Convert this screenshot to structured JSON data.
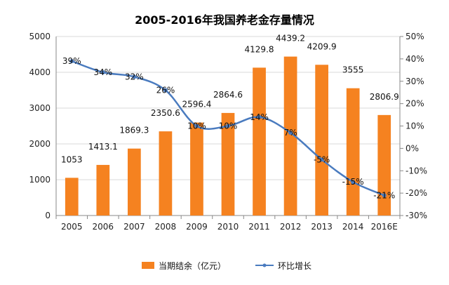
{
  "chart_data": {
    "type": "bar",
    "title": "2005-2016年我国养老金存量情况",
    "categories": [
      "2005",
      "2006",
      "2007",
      "2008",
      "2009",
      "2010",
      "2011",
      "2012",
      "2013",
      "2014",
      "2016E"
    ],
    "series": [
      {
        "name": "当期结余（亿元）",
        "type": "bar",
        "axis": "left",
        "values": [
          1053,
          1413.1,
          1869.3,
          2350.6,
          2596.4,
          2864.6,
          4129.8,
          4439.2,
          4209.9,
          3555,
          2806.9
        ],
        "labels": [
          "1053",
          "1413.1",
          "1869.3",
          "2350.6",
          "2596.4",
          "2864.6",
          "4129.8",
          "4439.2",
          "4209.9",
          "3555",
          "2806.9"
        ],
        "color": "#f58220"
      },
      {
        "name": "环比增长",
        "type": "line",
        "axis": "right",
        "values": [
          39,
          34,
          32,
          26,
          10,
          10,
          14,
          7,
          -5,
          -15,
          -21
        ],
        "labels": [
          "39%",
          "34%",
          "32%",
          "26%",
          "10%",
          "10%",
          "14%",
          "7%",
          "-5%",
          "-15%",
          "-21%"
        ],
        "color": "#4a7bbf"
      }
    ],
    "y_left": {
      "min": 0,
      "max": 5000,
      "ticks": [
        "0",
        "1000",
        "2000",
        "3000",
        "4000",
        "5000"
      ]
    },
    "y_right": {
      "min": -30,
      "max": 50,
      "ticks": [
        "-30%",
        "-20%",
        "-10%",
        "0%",
        "10%",
        "20%",
        "30%",
        "40%",
        "50%"
      ]
    },
    "grid": true,
    "legend_position": "bottom"
  }
}
